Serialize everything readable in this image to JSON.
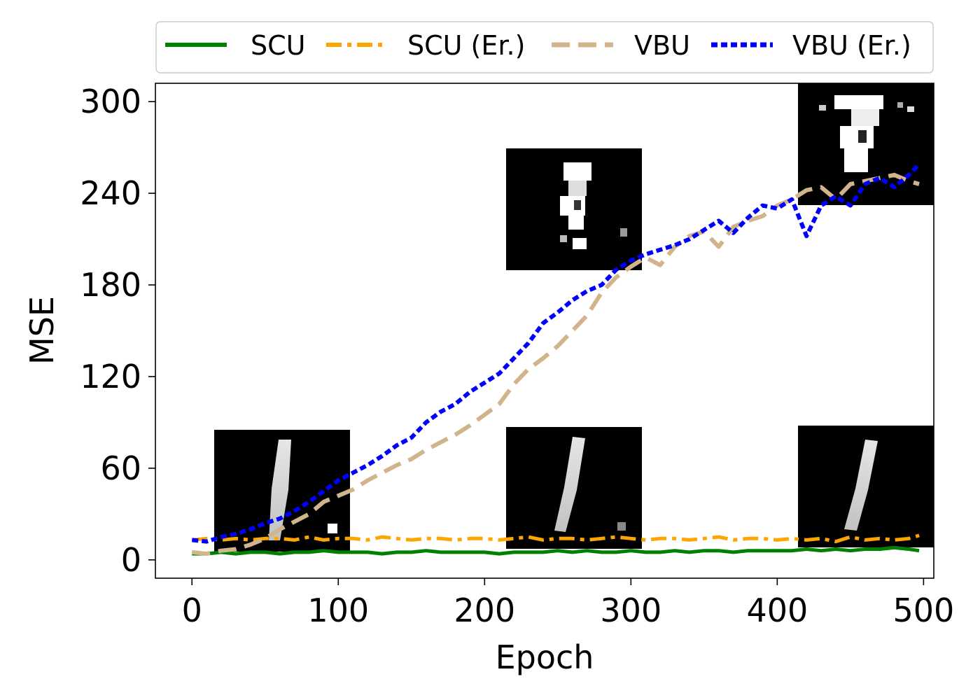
{
  "chart_data": {
    "type": "line",
    "xlabel": "Epoch",
    "ylabel": "MSE",
    "xlim": [
      -25,
      507
    ],
    "ylim": [
      -12,
      312
    ],
    "xticks": [
      0,
      100,
      200,
      300,
      400,
      500
    ],
    "yticks": [
      0,
      60,
      120,
      180,
      240,
      300
    ],
    "xtick_labels": [
      "0",
      "100",
      "200",
      "300",
      "400",
      "500"
    ],
    "ytick_labels": [
      "0",
      "60",
      "120",
      "180",
      "240",
      "300"
    ],
    "grid": false,
    "legend": {
      "placement": "top",
      "columns": 4
    },
    "series": [
      {
        "name": "SCU",
        "color": "#008000",
        "style": "solid",
        "points": [
          [
            0,
            4
          ],
          [
            10,
            4
          ],
          [
            20,
            5
          ],
          [
            30,
            4
          ],
          [
            40,
            5
          ],
          [
            50,
            5
          ],
          [
            60,
            4
          ],
          [
            70,
            5
          ],
          [
            80,
            5
          ],
          [
            90,
            6
          ],
          [
            100,
            5
          ],
          [
            110,
            5
          ],
          [
            120,
            5
          ],
          [
            130,
            4
          ],
          [
            140,
            5
          ],
          [
            150,
            5
          ],
          [
            160,
            6
          ],
          [
            170,
            5
          ],
          [
            180,
            5
          ],
          [
            190,
            5
          ],
          [
            200,
            5
          ],
          [
            210,
            4
          ],
          [
            220,
            5
          ],
          [
            230,
            5
          ],
          [
            240,
            5
          ],
          [
            250,
            6
          ],
          [
            260,
            5
          ],
          [
            270,
            6
          ],
          [
            280,
            5
          ],
          [
            290,
            5
          ],
          [
            300,
            6
          ],
          [
            310,
            5
          ],
          [
            320,
            5
          ],
          [
            330,
            6
          ],
          [
            340,
            5
          ],
          [
            350,
            6
          ],
          [
            360,
            6
          ],
          [
            370,
            5
          ],
          [
            380,
            6
          ],
          [
            390,
            6
          ],
          [
            400,
            6
          ],
          [
            410,
            6
          ],
          [
            420,
            7
          ],
          [
            430,
            6
          ],
          [
            440,
            7
          ],
          [
            450,
            6
          ],
          [
            460,
            7
          ],
          [
            470,
            7
          ],
          [
            480,
            8
          ],
          [
            490,
            7
          ],
          [
            497,
            6
          ]
        ]
      },
      {
        "name": "SCU (Er.)",
        "color": "#FFA500",
        "style": "dashdot",
        "points": [
          [
            0,
            13
          ],
          [
            10,
            14
          ],
          [
            20,
            13
          ],
          [
            30,
            14
          ],
          [
            40,
            13
          ],
          [
            50,
            14
          ],
          [
            60,
            14
          ],
          [
            70,
            13
          ],
          [
            80,
            15
          ],
          [
            90,
            13
          ],
          [
            100,
            14
          ],
          [
            110,
            14
          ],
          [
            120,
            13
          ],
          [
            130,
            15
          ],
          [
            140,
            14
          ],
          [
            150,
            13
          ],
          [
            160,
            14
          ],
          [
            170,
            14
          ],
          [
            180,
            13
          ],
          [
            190,
            14
          ],
          [
            200,
            14
          ],
          [
            210,
            13
          ],
          [
            220,
            14
          ],
          [
            230,
            15
          ],
          [
            240,
            13
          ],
          [
            250,
            14
          ],
          [
            260,
            14
          ],
          [
            270,
            13
          ],
          [
            280,
            14
          ],
          [
            290,
            15
          ],
          [
            300,
            14
          ],
          [
            310,
            13
          ],
          [
            320,
            14
          ],
          [
            330,
            14
          ],
          [
            340,
            13
          ],
          [
            350,
            14
          ],
          [
            360,
            15
          ],
          [
            370,
            13
          ],
          [
            380,
            14
          ],
          [
            390,
            14
          ],
          [
            400,
            13
          ],
          [
            410,
            14
          ],
          [
            420,
            13
          ],
          [
            430,
            14
          ],
          [
            440,
            12
          ],
          [
            450,
            15
          ],
          [
            460,
            13
          ],
          [
            470,
            14
          ],
          [
            480,
            13
          ],
          [
            490,
            14
          ],
          [
            497,
            16
          ]
        ]
      },
      {
        "name": "VBU",
        "color": "#D2B48C",
        "style": "dashed",
        "points": [
          [
            0,
            5
          ],
          [
            10,
            4
          ],
          [
            20,
            6
          ],
          [
            30,
            7
          ],
          [
            40,
            10
          ],
          [
            50,
            14
          ],
          [
            60,
            20
          ],
          [
            70,
            25
          ],
          [
            80,
            30
          ],
          [
            90,
            38
          ],
          [
            100,
            42
          ],
          [
            110,
            46
          ],
          [
            120,
            52
          ],
          [
            130,
            57
          ],
          [
            140,
            62
          ],
          [
            150,
            66
          ],
          [
            160,
            72
          ],
          [
            170,
            77
          ],
          [
            180,
            82
          ],
          [
            190,
            88
          ],
          [
            200,
            95
          ],
          [
            210,
            102
          ],
          [
            220,
            115
          ],
          [
            230,
            125
          ],
          [
            240,
            132
          ],
          [
            250,
            140
          ],
          [
            260,
            150
          ],
          [
            270,
            160
          ],
          [
            280,
            175
          ],
          [
            290,
            185
          ],
          [
            300,
            192
          ],
          [
            310,
            198
          ],
          [
            320,
            193
          ],
          [
            330,
            205
          ],
          [
            340,
            212
          ],
          [
            350,
            215
          ],
          [
            360,
            205
          ],
          [
            370,
            218
          ],
          [
            380,
            222
          ],
          [
            390,
            225
          ],
          [
            400,
            232
          ],
          [
            410,
            236
          ],
          [
            420,
            242
          ],
          [
            430,
            244
          ],
          [
            440,
            236
          ],
          [
            450,
            246
          ],
          [
            460,
            248
          ],
          [
            470,
            250
          ],
          [
            480,
            252
          ],
          [
            490,
            248
          ],
          [
            497,
            246
          ]
        ]
      },
      {
        "name": "VBU (Er.)",
        "color": "#0000FF",
        "style": "dotted",
        "points": [
          [
            0,
            13
          ],
          [
            10,
            12
          ],
          [
            20,
            15
          ],
          [
            30,
            17
          ],
          [
            40,
            20
          ],
          [
            50,
            24
          ],
          [
            60,
            27
          ],
          [
            70,
            32
          ],
          [
            80,
            38
          ],
          [
            90,
            45
          ],
          [
            100,
            52
          ],
          [
            110,
            57
          ],
          [
            120,
            62
          ],
          [
            130,
            68
          ],
          [
            140,
            75
          ],
          [
            150,
            80
          ],
          [
            160,
            90
          ],
          [
            170,
            97
          ],
          [
            180,
            102
          ],
          [
            190,
            110
          ],
          [
            200,
            116
          ],
          [
            210,
            122
          ],
          [
            220,
            132
          ],
          [
            230,
            142
          ],
          [
            240,
            155
          ],
          [
            250,
            162
          ],
          [
            260,
            170
          ],
          [
            270,
            176
          ],
          [
            280,
            180
          ],
          [
            290,
            190
          ],
          [
            300,
            196
          ],
          [
            310,
            200
          ],
          [
            320,
            203
          ],
          [
            330,
            206
          ],
          [
            340,
            210
          ],
          [
            350,
            216
          ],
          [
            360,
            222
          ],
          [
            370,
            214
          ],
          [
            380,
            224
          ],
          [
            390,
            232
          ],
          [
            400,
            230
          ],
          [
            410,
            236
          ],
          [
            420,
            212
          ],
          [
            430,
            232
          ],
          [
            440,
            238
          ],
          [
            450,
            232
          ],
          [
            460,
            246
          ],
          [
            470,
            250
          ],
          [
            480,
            244
          ],
          [
            490,
            252
          ],
          [
            497,
            259
          ]
        ]
      }
    ]
  }
}
